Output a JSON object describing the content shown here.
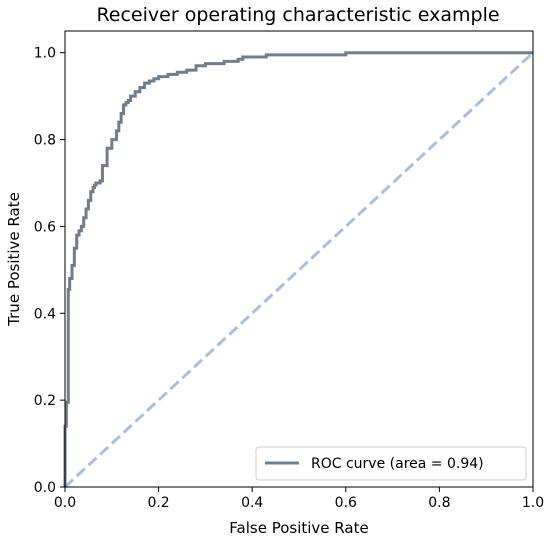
{
  "chart_data": {
    "type": "line",
    "title": "Receiver operating characteristic example",
    "xlabel": "False Positive Rate",
    "ylabel": "True Positive Rate",
    "xlim": [
      0.0,
      1.0
    ],
    "ylim": [
      0.0,
      1.05
    ],
    "x_ticks": [
      "0.0",
      "0.2",
      "0.4",
      "0.6",
      "0.8",
      "1.0"
    ],
    "y_ticks": [
      "0.0",
      "0.2",
      "0.4",
      "0.6",
      "0.8",
      "1.0"
    ],
    "grid": false,
    "legend_position": "lower-right",
    "series": [
      {
        "name": "ROC curve (area = 0.94)",
        "color": "#6f7d8c",
        "style": "solid",
        "x": [
          0.0,
          0.0,
          0.003,
          0.003,
          0.007,
          0.007,
          0.01,
          0.01,
          0.015,
          0.015,
          0.02,
          0.02,
          0.025,
          0.025,
          0.03,
          0.03,
          0.035,
          0.035,
          0.04,
          0.04,
          0.045,
          0.045,
          0.05,
          0.05,
          0.055,
          0.055,
          0.06,
          0.06,
          0.063,
          0.063,
          0.066,
          0.066,
          0.07,
          0.07,
          0.075,
          0.075,
          0.08,
          0.08,
          0.09,
          0.09,
          0.1,
          0.1,
          0.11,
          0.11,
          0.115,
          0.115,
          0.12,
          0.12,
          0.125,
          0.125,
          0.13,
          0.13,
          0.135,
          0.135,
          0.14,
          0.14,
          0.15,
          0.15,
          0.16,
          0.16,
          0.17,
          0.17,
          0.18,
          0.18,
          0.19,
          0.19,
          0.2,
          0.2,
          0.22,
          0.22,
          0.24,
          0.24,
          0.26,
          0.26,
          0.28,
          0.28,
          0.3,
          0.3,
          0.34,
          0.34,
          0.37,
          0.37,
          0.38,
          0.38,
          0.43,
          0.43,
          0.6,
          0.6,
          1.0
        ],
        "y": [
          0.0,
          0.14,
          0.14,
          0.195,
          0.195,
          0.455,
          0.455,
          0.48,
          0.48,
          0.51,
          0.51,
          0.55,
          0.55,
          0.58,
          0.58,
          0.59,
          0.59,
          0.6,
          0.6,
          0.62,
          0.62,
          0.64,
          0.64,
          0.66,
          0.66,
          0.68,
          0.68,
          0.69,
          0.69,
          0.695,
          0.695,
          0.7,
          0.7,
          0.7,
          0.7,
          0.705,
          0.705,
          0.74,
          0.74,
          0.78,
          0.78,
          0.8,
          0.8,
          0.82,
          0.82,
          0.84,
          0.84,
          0.86,
          0.86,
          0.88,
          0.88,
          0.885,
          0.885,
          0.89,
          0.89,
          0.9,
          0.9,
          0.91,
          0.91,
          0.92,
          0.92,
          0.93,
          0.93,
          0.935,
          0.935,
          0.94,
          0.94,
          0.945,
          0.945,
          0.95,
          0.95,
          0.955,
          0.955,
          0.96,
          0.96,
          0.97,
          0.97,
          0.975,
          0.975,
          0.98,
          0.98,
          0.985,
          0.985,
          0.99,
          0.99,
          0.995,
          0.995,
          1.0,
          1.0
        ]
      },
      {
        "color": "#a9c0dd",
        "style": "dashed",
        "x": [
          0.0,
          1.0
        ],
        "y": [
          0.0,
          1.0
        ]
      }
    ]
  }
}
